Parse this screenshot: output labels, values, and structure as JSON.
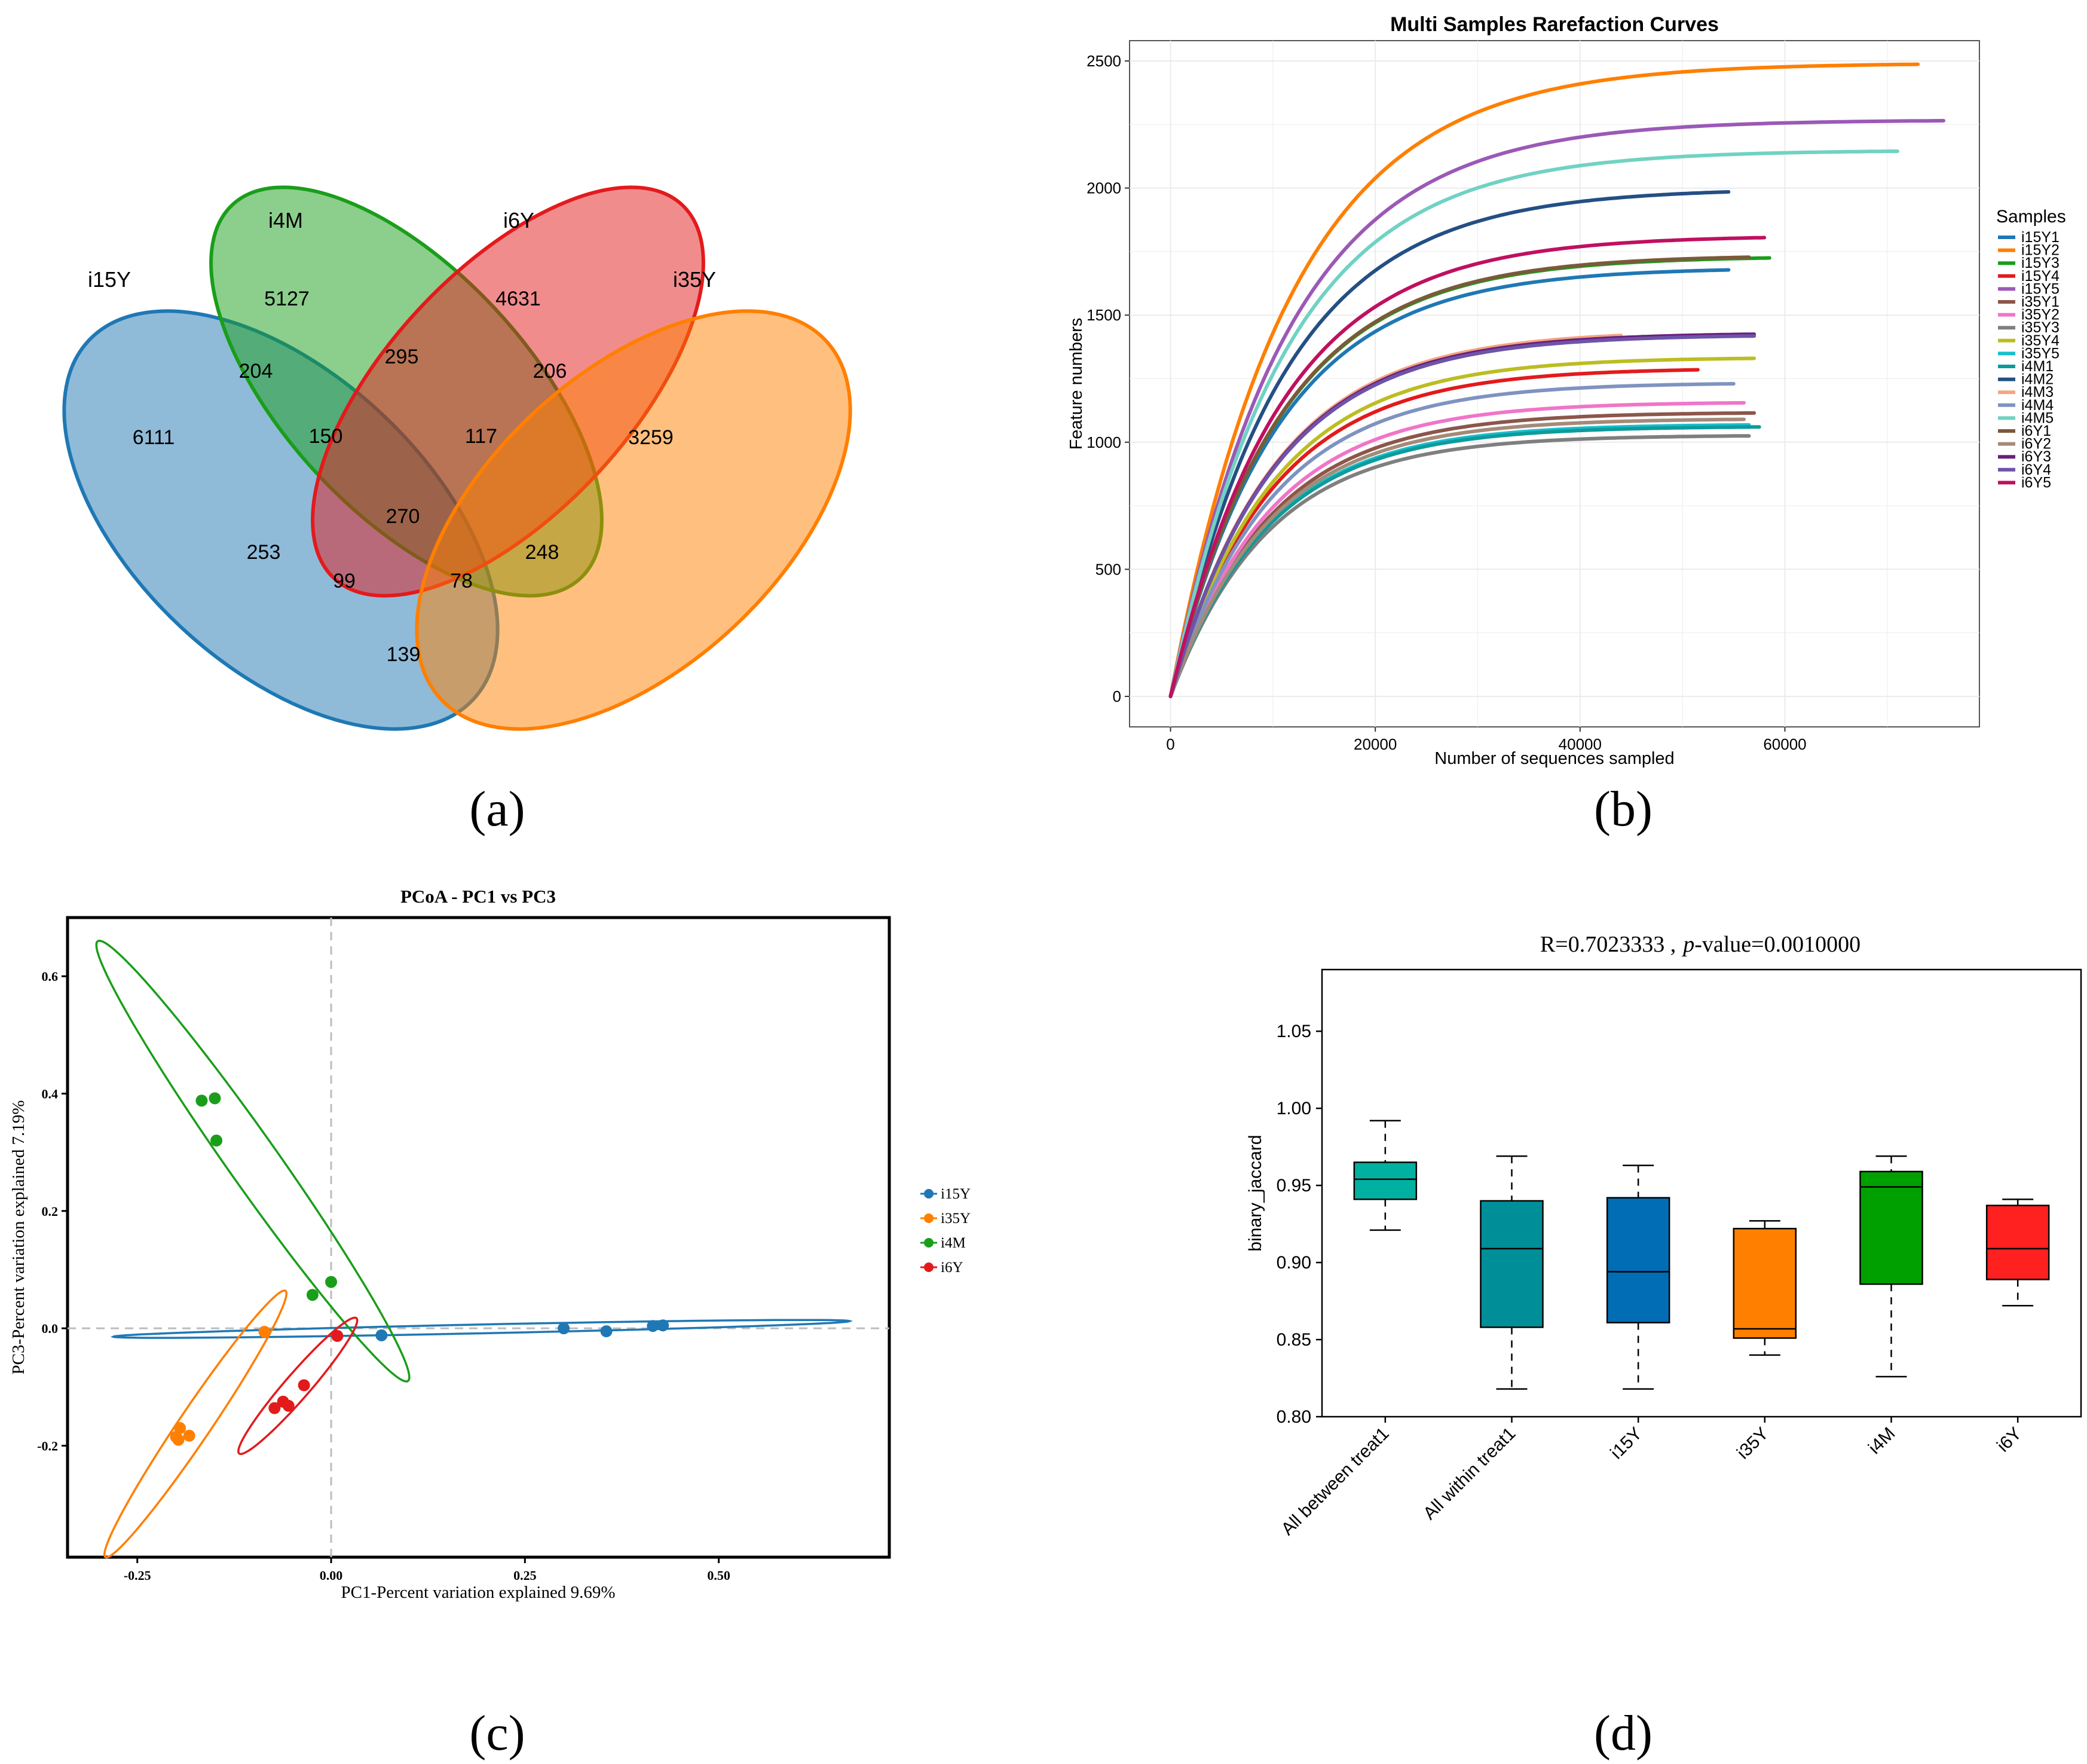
{
  "panel_labels": [
    "(a)",
    "(b)",
    "(c)",
    "(d)"
  ],
  "chart_data": [
    {
      "panel": "a",
      "type": "venn",
      "sets": [
        {
          "name": "i15Y",
          "color": "#1f78b4"
        },
        {
          "name": "i4M",
          "color": "#1a9e1a"
        },
        {
          "name": "i6Y",
          "color": "#e31a1c"
        },
        {
          "name": "i35Y",
          "color": "#ff7f00"
        }
      ],
      "regions": [
        {
          "id": "only-i15Y",
          "sets": [
            "i15Y"
          ],
          "value": 6111
        },
        {
          "id": "only-i4M",
          "sets": [
            "i4M"
          ],
          "value": 5127
        },
        {
          "id": "only-i6Y",
          "sets": [
            "i6Y"
          ],
          "value": 4631
        },
        {
          "id": "only-i35Y",
          "sets": [
            "i35Y"
          ],
          "value": 3259
        },
        {
          "id": "i15Y-i4M",
          "sets": [
            "i15Y",
            "i4M"
          ],
          "value": 204
        },
        {
          "id": "i4M-i6Y",
          "sets": [
            "i4M",
            "i6Y"
          ],
          "value": 295
        },
        {
          "id": "i6Y-i35Y",
          "sets": [
            "i6Y",
            "i35Y"
          ],
          "value": 206
        },
        {
          "id": "i15Y-i4M-i6Y",
          "sets": [
            "i15Y",
            "i4M",
            "i6Y"
          ],
          "value": 150
        },
        {
          "id": "i4M-i6Y-i35Y",
          "sets": [
            "i4M",
            "i6Y",
            "i35Y"
          ],
          "value": 117
        },
        {
          "id": "all",
          "sets": [
            "i15Y",
            "i4M",
            "i6Y",
            "i35Y"
          ],
          "value": 270
        },
        {
          "id": "i15Y-i6Y",
          "sets": [
            "i15Y",
            "i6Y"
          ],
          "value": 253
        },
        {
          "id": "i4M-i35Y",
          "sets": [
            "i4M",
            "i35Y"
          ],
          "value": 248
        },
        {
          "id": "i15Y-i6Y-i35Y",
          "sets": [
            "i15Y",
            "i6Y",
            "i35Y"
          ],
          "value": 99
        },
        {
          "id": "i15Y-i4M-i35Y",
          "sets": [
            "i15Y",
            "i4M",
            "i35Y"
          ],
          "value": 78
        },
        {
          "id": "i15Y-i35Y",
          "sets": [
            "i15Y",
            "i35Y"
          ],
          "value": 139
        }
      ]
    },
    {
      "panel": "b",
      "type": "line",
      "title": "Multi Samples Rarefaction Curves",
      "xlabel": "Number of sequences sampled",
      "ylabel": "Feature numbers",
      "xlim": [
        -4000,
        79000
      ],
      "ylim": [
        -120,
        2580
      ],
      "xticks": [
        0,
        20000,
        40000,
        60000
      ],
      "yticks": [
        0,
        500,
        1000,
        1500,
        2000,
        2500
      ],
      "legend_title": "Samples",
      "series": [
        {
          "name": "i15Y1",
          "color": "#1f78b4",
          "max_seq": 54500,
          "final": 1678
        },
        {
          "name": "i15Y2",
          "color": "#ff7f00",
          "max_seq": 73000,
          "final": 2487
        },
        {
          "name": "i15Y3",
          "color": "#1a9e1a",
          "max_seq": 58500,
          "final": 1725
        },
        {
          "name": "i15Y4",
          "color": "#e31a1c",
          "max_seq": 51500,
          "final": 1285
        },
        {
          "name": "i15Y5",
          "color": "#9b59b6",
          "max_seq": 75500,
          "final": 2265
        },
        {
          "name": "i35Y1",
          "color": "#8c564b",
          "max_seq": 57000,
          "final": 1115
        },
        {
          "name": "i35Y2",
          "color": "#f075c8",
          "max_seq": 56000,
          "final": 1155
        },
        {
          "name": "i35Y3",
          "color": "#7f7f7f",
          "max_seq": 56500,
          "final": 1025
        },
        {
          "name": "i35Y4",
          "color": "#bcbd22",
          "max_seq": 57000,
          "final": 1330
        },
        {
          "name": "i35Y5",
          "color": "#17becf",
          "max_seq": 56500,
          "final": 1068
        },
        {
          "name": "i4M1",
          "color": "#0e9b9b",
          "max_seq": 57500,
          "final": 1060
        },
        {
          "name": "i4M2",
          "color": "#244f84",
          "max_seq": 54500,
          "final": 1985
        },
        {
          "name": "i4M3",
          "color": "#f4a582",
          "max_seq": 44000,
          "final": 1420
        },
        {
          "name": "i4M4",
          "color": "#7f93c1",
          "max_seq": 55000,
          "final": 1230
        },
        {
          "name": "i4M5",
          "color": "#70d2c3",
          "max_seq": 71000,
          "final": 2145
        },
        {
          "name": "i6Y1",
          "color": "#7a5a3a",
          "max_seq": 56500,
          "final": 1728
        },
        {
          "name": "i6Y2",
          "color": "#a48a78",
          "max_seq": 56000,
          "final": 1090
        },
        {
          "name": "i6Y3",
          "color": "#6a1e7d",
          "max_seq": 57000,
          "final": 1425
        },
        {
          "name": "i6Y4",
          "color": "#6d54a8",
          "max_seq": 57000,
          "final": 1418
        },
        {
          "name": "i6Y5",
          "color": "#c01060",
          "max_seq": 58000,
          "final": 1805
        }
      ]
    },
    {
      "panel": "c",
      "type": "scatter",
      "title": "PCoA - PC1 vs PC3",
      "xlabel": "PC1-Percent variation explained 9.69%",
      "ylabel": "PC3-Percent variation explained 7.19%",
      "xlim": [
        -0.34,
        0.72
      ],
      "ylim": [
        -0.39,
        0.7
      ],
      "xticks": [
        -0.25,
        0.0,
        0.25,
        0.5
      ],
      "xtick_labels": [
        "-0.25",
        "0.00",
        "0.25",
        "0.50"
      ],
      "yticks": [
        -0.2,
        0.0,
        0.2,
        0.4,
        0.6
      ],
      "ytick_labels": [
        "-0.2",
        "0.0",
        "0.2",
        "0.4",
        "0.6"
      ],
      "groups": [
        {
          "name": "i15Y",
          "color": "#1f78b4",
          "points": [
            [
              0.065,
              -0.012
            ],
            [
              0.3,
              0.0
            ],
            [
              0.355,
              -0.005
            ],
            [
              0.415,
              0.004
            ],
            [
              0.428,
              0.005
            ]
          ],
          "ellipse": {
            "cx": 0.194,
            "cy": -0.001,
            "rx": 0.475,
            "ry": 0.0075,
            "angle": 1.6
          }
        },
        {
          "name": "i35Y",
          "color": "#ff7f00",
          "points": [
            [
              -0.195,
              -0.17
            ],
            [
              -0.2,
              -0.185
            ],
            [
              -0.197,
              -0.19
            ],
            [
              -0.183,
              -0.183
            ],
            [
              -0.086,
              -0.006
            ]
          ],
          "ellipse": {
            "cx": -0.175,
            "cy": -0.163,
            "rx": 0.255,
            "ry": 0.022,
            "angle": 63
          }
        },
        {
          "name": "i4M",
          "color": "#1a9e1a",
          "points": [
            [
              -0.167,
              0.388
            ],
            [
              -0.15,
              0.392
            ],
            [
              -0.148,
              0.32
            ],
            [
              -0.024,
              0.057
            ],
            [
              0.0,
              0.079
            ]
          ],
          "ellipse": {
            "cx": -0.101,
            "cy": 0.285,
            "rx": 0.425,
            "ry": 0.035,
            "angle": 118
          }
        },
        {
          "name": "i6Y",
          "color": "#e31a1c",
          "points": [
            [
              -0.073,
              -0.136
            ],
            [
              -0.062,
              -0.125
            ],
            [
              -0.055,
              -0.132
            ],
            [
              -0.035,
              -0.097
            ],
            [
              0.008,
              -0.013
            ]
          ],
          "ellipse": {
            "cx": -0.043,
            "cy": -0.098,
            "rx": 0.138,
            "ry": 0.018,
            "angle": 57
          }
        }
      ]
    },
    {
      "panel": "d",
      "type": "box",
      "title": "R=0.7023333 ,",
      "title_p": "p",
      "title_rest": "-value=0.0010000",
      "ylabel": "binary_jaccard",
      "ylim": [
        0.8,
        1.09
      ],
      "yticks": [
        0.8,
        0.85,
        0.9,
        0.95,
        1.0,
        1.05
      ],
      "ytick_labels": [
        "0.80",
        "0.85",
        "0.90",
        "0.95",
        "1.00",
        "1.05"
      ],
      "categories": [
        "All between treat1",
        "All within treat1",
        "i15Y",
        "i35Y",
        "i4M",
        "i6Y"
      ],
      "boxes": [
        {
          "name": "All between treat1",
          "color": "#00b0a0",
          "min": 0.921,
          "q1": 0.941,
          "median": 0.954,
          "q3": 0.965,
          "max": 0.992
        },
        {
          "name": "All within treat1",
          "color": "#008f98",
          "min": 0.818,
          "q1": 0.858,
          "median": 0.909,
          "q3": 0.94,
          "max": 0.969
        },
        {
          "name": "i15Y",
          "color": "#006db5",
          "min": 0.818,
          "q1": 0.861,
          "median": 0.894,
          "q3": 0.942,
          "max": 0.963
        },
        {
          "name": "i35Y",
          "color": "#ff8000",
          "min": 0.84,
          "q1": 0.851,
          "median": 0.857,
          "q3": 0.922,
          "max": 0.927
        },
        {
          "name": "i4M",
          "color": "#00a000",
          "min": 0.826,
          "q1": 0.886,
          "median": 0.949,
          "q3": 0.959,
          "max": 0.969
        },
        {
          "name": "i6Y",
          "color": "#ff2020",
          "min": 0.872,
          "q1": 0.889,
          "median": 0.909,
          "q3": 0.937,
          "max": 0.941
        }
      ]
    }
  ]
}
